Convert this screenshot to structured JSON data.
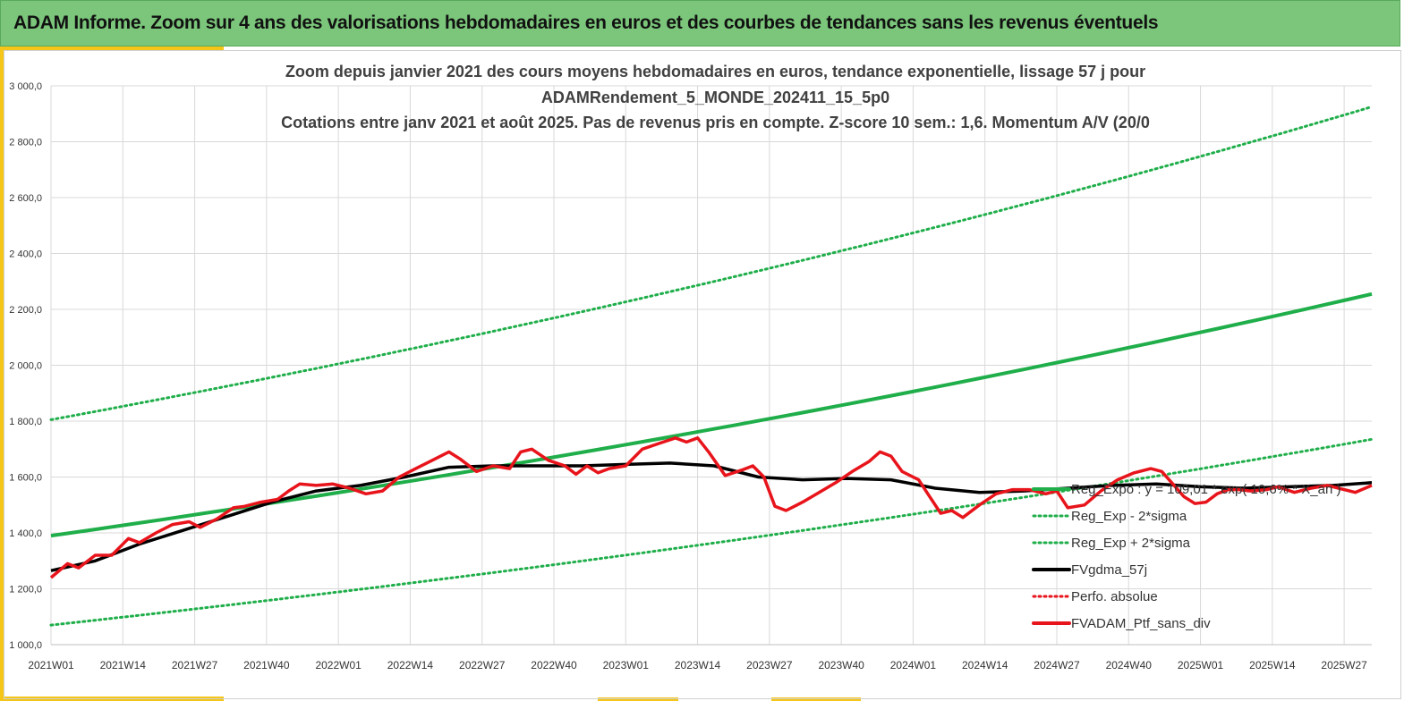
{
  "banner": {
    "title": "ADAM Informe. Zoom sur 4 ans des valorisations hebdomadaires en euros et des courbes de tendances sans les revenus éventuels"
  },
  "colors": {
    "banner_bg": "#7bc67b",
    "accent": "#f5c518",
    "trend": "#1fae4a",
    "band": "#1fae4a",
    "smooth": "#000000",
    "price": "#e8141b"
  },
  "chart_data": {
    "type": "line",
    "title_lines": [
      "Zoom depuis janvier 2021 des cours moyens hebdomadaires  en euros, tendance exponentielle, lissage 57 j pour",
      "ADAMRendement_5_MONDE_202411_15_5p0",
      "Cotations entre janv 2021 et août 2025. Pas de revenus pris en compte. Z-score 10 sem.: 1,6. Momentum A/V (20/0"
    ],
    "y_ticks": [
      "1 000,0",
      "1 200,0",
      "1 400,0",
      "1 600,0",
      "1 800,0",
      "2 000,0",
      "2 200,0",
      "2 400,0",
      "2 600,0",
      "2 800,0",
      "3 000,0"
    ],
    "ylim": [
      1000,
      3000
    ],
    "x_ticks": [
      "2021W01",
      "2021W14",
      "2021W27",
      "2021W40",
      "2022W01",
      "2022W14",
      "2022W27",
      "2022W40",
      "2023W01",
      "2023W14",
      "2023W27",
      "2023W40",
      "2024W01",
      "2024W14",
      "2024W27",
      "2024W40",
      "2025W01",
      "2025W14",
      "2025W27"
    ],
    "x_tick_weeks": [
      0,
      13,
      26,
      39,
      52,
      65,
      78,
      91,
      104,
      117,
      130,
      143,
      156,
      169,
      182,
      195,
      208,
      221,
      234
    ],
    "xlim_weeks": [
      0,
      239
    ],
    "grid": true,
    "legend_position": "bottom-right",
    "legend": [
      {
        "key": "reg_expo",
        "label": "Reg_Expo : y = 109,01 * exp( 10,6% *  X_an )",
        "style": "solid-green"
      },
      {
        "key": "minus2",
        "label": "Reg_Exp - 2*sigma",
        "style": "dotted-green"
      },
      {
        "key": "plus2",
        "label": "Reg_Exp + 2*sigma",
        "style": "dotted-green"
      },
      {
        "key": "gdma",
        "label": "FVgdma_57j",
        "style": "solid-black"
      },
      {
        "key": "perfo",
        "label": "Perfo. absolue",
        "style": "dotted-red"
      },
      {
        "key": "price",
        "label": "FVADAM_Ptf_sans_div",
        "style": "solid-red"
      }
    ],
    "series": [
      {
        "key": "reg_expo",
        "name": "Reg_Expo : y = 109,01 * exp( 10,6% *  X_an )",
        "start": 1390,
        "end": 2255
      },
      {
        "key": "plus2",
        "name": "Reg_Exp + 2*sigma",
        "start": 1805,
        "end": 2925
      },
      {
        "key": "minus2",
        "name": "Reg_Exp - 2*sigma",
        "start": 1070,
        "end": 1735
      },
      {
        "key": "price",
        "name": "FVADAM_Ptf_sans_div",
        "points": [
          [
            0,
            1240
          ],
          [
            3,
            1290
          ],
          [
            5,
            1275
          ],
          [
            8,
            1320
          ],
          [
            11,
            1320
          ],
          [
            14,
            1380
          ],
          [
            16,
            1365
          ],
          [
            19,
            1400
          ],
          [
            22,
            1430
          ],
          [
            25,
            1440
          ],
          [
            27,
            1420
          ],
          [
            30,
            1450
          ],
          [
            33,
            1490
          ],
          [
            35,
            1495
          ],
          [
            38,
            1510
          ],
          [
            41,
            1520
          ],
          [
            43,
            1550
          ],
          [
            45,
            1575
          ],
          [
            48,
            1570
          ],
          [
            51,
            1575
          ],
          [
            54,
            1560
          ],
          [
            57,
            1540
          ],
          [
            60,
            1550
          ],
          [
            63,
            1600
          ],
          [
            66,
            1630
          ],
          [
            69,
            1660
          ],
          [
            72,
            1690
          ],
          [
            74,
            1665
          ],
          [
            77,
            1620
          ],
          [
            80,
            1640
          ],
          [
            83,
            1630
          ],
          [
            85,
            1690
          ],
          [
            87,
            1700
          ],
          [
            90,
            1660
          ],
          [
            93,
            1640
          ],
          [
            95,
            1610
          ],
          [
            97,
            1640
          ],
          [
            99,
            1615
          ],
          [
            101,
            1630
          ],
          [
            104,
            1640
          ],
          [
            107,
            1700
          ],
          [
            110,
            1720
          ],
          [
            113,
            1740
          ],
          [
            115,
            1725
          ],
          [
            117,
            1740
          ],
          [
            119,
            1690
          ],
          [
            122,
            1605
          ],
          [
            125,
            1625
          ],
          [
            127,
            1640
          ],
          [
            129,
            1600
          ],
          [
            131,
            1495
          ],
          [
            133,
            1480
          ],
          [
            136,
            1510
          ],
          [
            139,
            1545
          ],
          [
            142,
            1580
          ],
          [
            145,
            1620
          ],
          [
            148,
            1655
          ],
          [
            150,
            1690
          ],
          [
            152,
            1675
          ],
          [
            154,
            1620
          ],
          [
            157,
            1590
          ],
          [
            159,
            1530
          ],
          [
            161,
            1470
          ],
          [
            163,
            1480
          ],
          [
            165,
            1455
          ],
          [
            168,
            1500
          ],
          [
            171,
            1540
          ],
          [
            174,
            1555
          ],
          [
            177,
            1555
          ],
          [
            180,
            1540
          ],
          [
            182,
            1550
          ],
          [
            184,
            1490
          ],
          [
            187,
            1500
          ],
          [
            190,
            1550
          ],
          [
            193,
            1590
          ],
          [
            196,
            1615
          ],
          [
            199,
            1630
          ],
          [
            201,
            1620
          ],
          [
            203,
            1575
          ],
          [
            205,
            1530
          ],
          [
            207,
            1505
          ],
          [
            209,
            1510
          ],
          [
            211,
            1540
          ],
          [
            213,
            1555
          ],
          [
            215,
            1555
          ],
          [
            217,
            1550
          ],
          [
            220,
            1555
          ],
          [
            222,
            1565
          ],
          [
            225,
            1545
          ],
          [
            228,
            1560
          ],
          [
            231,
            1570
          ],
          [
            233,
            1560
          ],
          [
            236,
            1545
          ],
          [
            239,
            1570
          ]
        ]
      },
      {
        "key": "gdma",
        "name": "FVgdma_57j",
        "points": [
          [
            0,
            1265
          ],
          [
            8,
            1300
          ],
          [
            16,
            1360
          ],
          [
            24,
            1410
          ],
          [
            32,
            1460
          ],
          [
            40,
            1510
          ],
          [
            48,
            1550
          ],
          [
            56,
            1570
          ],
          [
            64,
            1600
          ],
          [
            72,
            1635
          ],
          [
            80,
            1640
          ],
          [
            88,
            1640
          ],
          [
            96,
            1640
          ],
          [
            104,
            1645
          ],
          [
            112,
            1650
          ],
          [
            120,
            1640
          ],
          [
            128,
            1600
          ],
          [
            136,
            1590
          ],
          [
            144,
            1595
          ],
          [
            152,
            1590
          ],
          [
            160,
            1560
          ],
          [
            168,
            1545
          ],
          [
            176,
            1550
          ],
          [
            184,
            1560
          ],
          [
            192,
            1570
          ],
          [
            200,
            1575
          ],
          [
            208,
            1565
          ],
          [
            216,
            1560
          ],
          [
            224,
            1565
          ],
          [
            232,
            1570
          ],
          [
            239,
            1580
          ]
        ]
      }
    ]
  }
}
